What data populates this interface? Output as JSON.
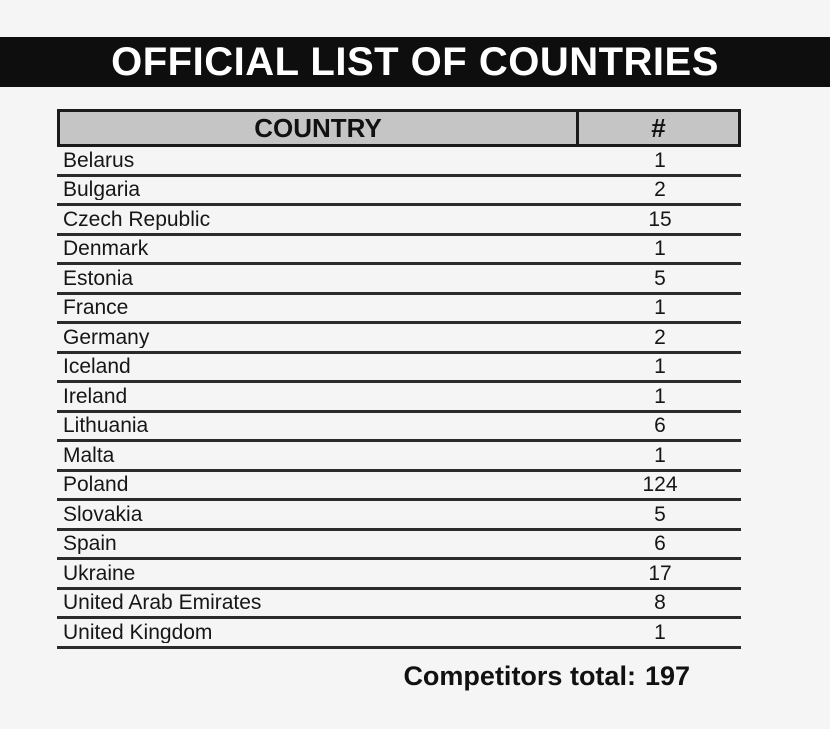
{
  "title_bar": {
    "text": "OFFICIAL LIST OF COUNTRIES",
    "bg_color": "#0e0e0e",
    "text_color": "#ffffff"
  },
  "table": {
    "header_bg_color": "#c5c5c5",
    "headers": {
      "country": "COUNTRY",
      "count": "#"
    },
    "rows": [
      {
        "country": "Belarus",
        "count": "1"
      },
      {
        "country": "Bulgaria",
        "count": "2"
      },
      {
        "country": "Czech Republic",
        "count": "15"
      },
      {
        "country": "Denmark",
        "count": "1"
      },
      {
        "country": "Estonia",
        "count": "5"
      },
      {
        "country": "France",
        "count": "1"
      },
      {
        "country": "Germany",
        "count": "2"
      },
      {
        "country": "Iceland",
        "count": "1"
      },
      {
        "country": "Ireland",
        "count": "1"
      },
      {
        "country": "Lithuania",
        "count": "6"
      },
      {
        "country": "Malta",
        "count": "1"
      },
      {
        "country": "Poland",
        "count": "124"
      },
      {
        "country": "Slovakia",
        "count": "5"
      },
      {
        "country": "Spain",
        "count": "6"
      },
      {
        "country": "Ukraine",
        "count": "17"
      },
      {
        "country": "United Arab Emirates",
        "count": "8"
      },
      {
        "country": "United Kingdom",
        "count": "1"
      }
    ]
  },
  "footer": {
    "label": "Competitors total:",
    "value": "197"
  }
}
